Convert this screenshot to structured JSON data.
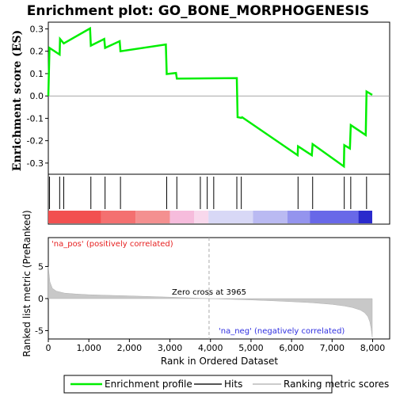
{
  "chart_data": {
    "title": "Enrichment plot: GO_BONE_MORPHOGENESIS",
    "type": "line",
    "enrichment_panel": {
      "ylabel": "Enrichment score (ES)",
      "ylim": [
        -0.35,
        0.33
      ],
      "yticks": [
        -0.3,
        -0.2,
        -0.1,
        0.0,
        0.1,
        0.2,
        0.3
      ],
      "ytick_labels": [
        "-0.3",
        "-0.2",
        "-0.1",
        "0.0",
        "0.1",
        "0.2",
        "0.3"
      ],
      "series": [
        {
          "name": "Enrichment profile",
          "color": "#00ee00",
          "x": [
            0,
            30,
            280,
            290,
            380,
            1030,
            1050,
            1380,
            1400,
            1760,
            1780,
            2900,
            2920,
            3150,
            3170,
            4650,
            4670,
            4760,
            4780,
            6150,
            6160,
            6500,
            6520,
            7290,
            7300,
            7440,
            7460,
            7830,
            7850,
            7990
          ],
          "y": [
            0.0,
            0.215,
            0.185,
            0.255,
            0.235,
            0.302,
            0.225,
            0.255,
            0.215,
            0.245,
            0.2,
            0.23,
            0.098,
            0.103,
            0.078,
            0.08,
            -0.095,
            -0.098,
            -0.095,
            -0.265,
            -0.225,
            -0.265,
            -0.215,
            -0.315,
            -0.22,
            -0.235,
            -0.13,
            -0.175,
            0.02,
            0.005
          ]
        }
      ],
      "hits": [
        30,
        280,
        380,
        1050,
        1400,
        1780,
        2920,
        3170,
        3750,
        3920,
        4080,
        4650,
        4760,
        6160,
        6520,
        7300,
        7460,
        7850
      ],
      "hits_label": "Hits"
    },
    "ranking_panel": {
      "ylabel": "Ranked list metric (PreRanked)",
      "ylim": [
        -6.3,
        9.5
      ],
      "yticks": [
        -5,
        0,
        5
      ],
      "ytick_labels": [
        "-5",
        "0",
        "5"
      ],
      "series_label": "Ranking metric scores",
      "metric_profile": {
        "x": [
          0,
          40,
          100,
          200,
          400,
          700,
          1000,
          1500,
          2000,
          2500,
          3000,
          3500,
          3965,
          4500,
          5000,
          5500,
          6000,
          6500,
          7000,
          7300,
          7500,
          7700,
          7800,
          7880,
          7930,
          7960,
          7990
        ],
        "y": [
          5.0,
          2.6,
          1.6,
          1.15,
          0.85,
          0.7,
          0.6,
          0.5,
          0.42,
          0.32,
          0.22,
          0.11,
          0.0,
          -0.12,
          -0.22,
          -0.34,
          -0.48,
          -0.65,
          -0.9,
          -1.15,
          -1.4,
          -1.8,
          -2.2,
          -2.8,
          -3.6,
          -4.6,
          -6.0
        ]
      },
      "zero_cross_label": "Zero cross at 3965",
      "zero_cross_x": 3965,
      "pos_label": "'na_pos' (positively correlated)",
      "neg_label": "'na_neg' (negatively correlated)"
    },
    "color_bar": {
      "segments": [
        {
          "x0": 0,
          "x1": 1300,
          "color": "#f25050"
        },
        {
          "x0": 1300,
          "x1": 2150,
          "color": "#f47070"
        },
        {
          "x0": 2150,
          "x1": 3000,
          "color": "#f49090"
        },
        {
          "x0": 3000,
          "x1": 3600,
          "color": "#f6bcdc"
        },
        {
          "x0": 3600,
          "x1": 3950,
          "color": "#f8d8ec"
        },
        {
          "x0": 3950,
          "x1": 5050,
          "color": "#d8d8f6"
        },
        {
          "x0": 5050,
          "x1": 5900,
          "color": "#babaf2"
        },
        {
          "x0": 5900,
          "x1": 6450,
          "color": "#9494ee"
        },
        {
          "x0": 6450,
          "x1": 7650,
          "color": "#6868e8"
        },
        {
          "x0": 7650,
          "x1": 7990,
          "color": "#2a2acc"
        }
      ]
    },
    "x_axis": {
      "label": "Rank in Ordered Dataset",
      "xlim": [
        0,
        8420
      ],
      "ticks": [
        0,
        1000,
        2000,
        3000,
        4000,
        5000,
        6000,
        7000,
        8000
      ],
      "tick_labels": [
        "0",
        "1,000",
        "2,000",
        "3,000",
        "4,000",
        "5,000",
        "6,000",
        "7,000",
        "8,000"
      ]
    },
    "legend": {
      "position": "bottom",
      "items": [
        {
          "label": "Enrichment profile",
          "color": "#00ee00"
        },
        {
          "label": "Hits",
          "color": "#555555"
        },
        {
          "label": "Ranking metric scores",
          "color": "#cccccc"
        }
      ]
    }
  }
}
